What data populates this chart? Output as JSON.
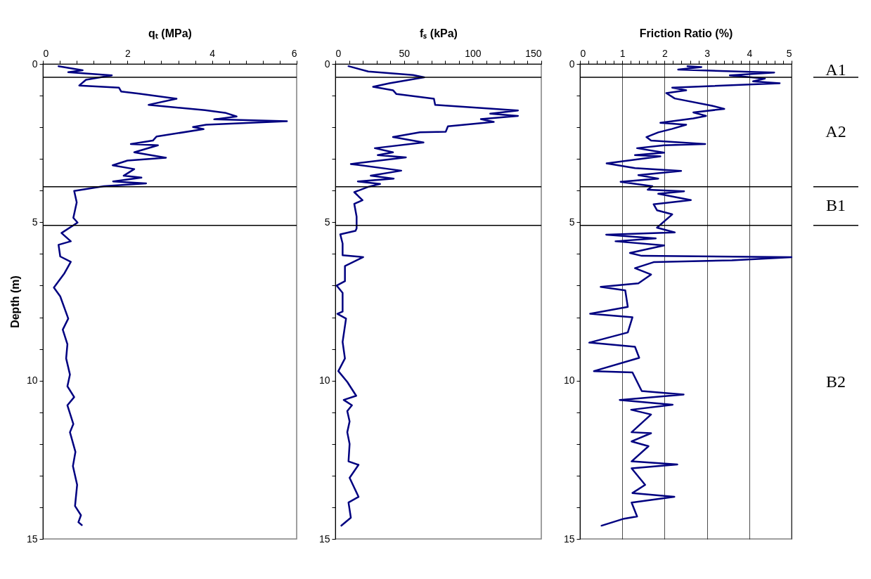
{
  "chart_data": [
    {
      "type": "line",
      "xlabel": "qₜ (MPa)",
      "ylabel": "Depth (m)",
      "xlim": [
        0,
        6
      ],
      "xticks": [
        0,
        {
          "value": 0.4,
          "label": null
        },
        {
          "value": 0.8,
          "label": null
        },
        {
          "value": 1.2,
          "label": null
        },
        {
          "value": 1.6,
          "label": null
        },
        2,
        {
          "value": 2.4,
          "label": null
        },
        {
          "value": 2.8,
          "label": null
        },
        {
          "value": 3.2,
          "label": null
        },
        {
          "value": 3.6,
          "label": null
        },
        4,
        {
          "value": 4.4,
          "label": null
        },
        {
          "value": 4.8,
          "label": null
        },
        {
          "value": 5.2,
          "label": null
        },
        {
          "value": 5.6,
          "label": null
        },
        6
      ],
      "ylim": [
        15,
        0
      ],
      "yticks": [
        0,
        {
          "value": 1,
          "label": null
        },
        {
          "value": 2,
          "label": null
        },
        {
          "value": 3,
          "label": null
        },
        {
          "value": 4,
          "label": null
        },
        5,
        {
          "value": 6,
          "label": null
        },
        {
          "value": 7,
          "label": null
        },
        {
          "value": 8,
          "label": null
        },
        {
          "value": 9,
          "label": null
        },
        10,
        {
          "value": 11,
          "label": null
        },
        {
          "value": 12,
          "label": null
        },
        {
          "value": 13,
          "label": null
        },
        {
          "value": 14,
          "label": null
        },
        15
      ],
      "series": [
        {
          "color": "#000080",
          "x": [
            0.37,
            0.94,
            0.6,
            1.63,
            1.02,
            0.86,
            1.8,
            1.85,
            2.27,
            3.16,
            2.5,
            3.83,
            4.33,
            4.58,
            4.05,
            5.77,
            3.86,
            3.55,
            3.8,
            2.69,
            2.6,
            2.08,
            2.72,
            2.16,
            2.91,
            2.0,
            1.65,
            2.16,
            1.91,
            2.33,
            1.66,
            2.44,
            1.44,
            0.74,
            0.8,
            0.72,
            0.82,
            0.44,
            0.66,
            0.37,
            0.41,
            0.66,
            0.5,
            0.26,
            0.41,
            0.6,
            0.47,
            0.58,
            0.55,
            0.64,
            0.58,
            0.74,
            0.58,
            0.72,
            0.64,
            0.77,
            0.71,
            0.81,
            0.76,
            0.9,
            0.84,
            0.92
          ],
          "values": [
            0.07,
            0.2,
            0.26,
            0.36,
            0.5,
            0.68,
            0.75,
            0.87,
            0.94,
            1.1,
            1.29,
            1.46,
            1.55,
            1.66,
            1.75,
            1.81,
            1.92,
            1.99,
            2.06,
            2.29,
            2.42,
            2.53,
            2.57,
            2.79,
            2.96,
            3.05,
            3.2,
            3.32,
            3.53,
            3.59,
            3.71,
            3.77,
            3.86,
            4.01,
            4.37,
            4.86,
            5.01,
            5.34,
            5.6,
            5.71,
            6.08,
            6.25,
            6.63,
            7.06,
            7.34,
            8.04,
            8.39,
            8.85,
            9.3,
            9.81,
            10.18,
            10.52,
            10.78,
            11.37,
            11.63,
            12.25,
            12.7,
            13.29,
            13.96,
            14.25,
            14.47,
            14.56
          ]
        }
      ],
      "ref_lines": [
        {
          "axis": "y",
          "value": 0.42
        },
        {
          "axis": "y",
          "value": 3.88
        },
        {
          "axis": "y",
          "value": 5.1
        }
      ]
    },
    {
      "type": "line",
      "xlabel": "fₛ (kPa)",
      "xlim": [
        0,
        150
      ],
      "xticks": [
        0,
        {
          "value": 10,
          "label": null
        },
        {
          "value": 20,
          "label": null
        },
        {
          "value": 30,
          "label": null
        },
        {
          "value": 40,
          "label": null
        },
        50,
        {
          "value": 60,
          "label": null
        },
        {
          "value": 70,
          "label": null
        },
        {
          "value": 80,
          "label": null
        },
        {
          "value": 90,
          "label": null
        },
        100,
        {
          "value": 110,
          "label": null
        },
        {
          "value": 120,
          "label": null
        },
        {
          "value": 130,
          "label": null
        },
        {
          "value": 140,
          "label": null
        },
        150
      ],
      "ylim": [
        15,
        0
      ],
      "yticks": [
        0,
        {
          "value": 1,
          "label": null
        },
        {
          "value": 2,
          "label": null
        },
        {
          "value": 3,
          "label": null
        },
        {
          "value": 4,
          "label": null
        },
        5,
        {
          "value": 6,
          "label": null
        },
        {
          "value": 7,
          "label": null
        },
        {
          "value": 8,
          "label": null
        },
        {
          "value": 9,
          "label": null
        },
        10,
        {
          "value": 11,
          "label": null
        },
        {
          "value": 12,
          "label": null
        },
        {
          "value": 13,
          "label": null
        },
        {
          "value": 14,
          "label": null
        },
        15
      ],
      "series": [
        {
          "color": "#000080",
          "x": [
            9.6,
            24,
            56.5,
            64.7,
            39.4,
            27.5,
            42,
            44.5,
            71.8,
            72.7,
            133,
            112.8,
            133,
            106,
            115.4,
            82,
            80.4,
            61.6,
            42,
            64.2,
            28.8,
            42,
            30.9,
            51.4,
            11.3,
            48,
            25.8,
            42.5,
            16.4,
            32.6,
            24,
            13.8,
            19.8,
            13.8,
            15.5,
            15.5,
            14.7,
            3.6,
            5.3,
            5.3,
            20.3,
            7,
            7,
            1,
            5.3,
            5.3,
            1.5,
            7.8,
            5.3,
            7,
            2.2,
            8.7,
            15.2,
            6.1,
            12.1,
            8.7,
            10.4,
            8.7,
            10.4,
            9.6,
            16.9,
            10.4,
            16.9,
            9.6,
            11.3,
            4.4
          ],
          "values": [
            0.07,
            0.24,
            0.35,
            0.42,
            0.61,
            0.72,
            0.83,
            0.95,
            1.1,
            1.29,
            1.47,
            1.57,
            1.64,
            1.74,
            1.83,
            1.97,
            2.14,
            2.16,
            2.31,
            2.48,
            2.66,
            2.79,
            2.88,
            2.95,
            3.16,
            3.37,
            3.53,
            3.62,
            3.71,
            3.79,
            3.88,
            4.05,
            4.3,
            4.42,
            4.82,
            5.19,
            5.27,
            5.38,
            5.67,
            6.04,
            6.1,
            6.38,
            6.86,
            7.0,
            7.23,
            7.82,
            7.89,
            8.04,
            8.78,
            9.3,
            9.7,
            10.04,
            10.48,
            10.61,
            10.78,
            10.96,
            11.29,
            11.63,
            12.0,
            12.55,
            12.66,
            13.07,
            13.67,
            13.85,
            14.33,
            14.58
          ]
        }
      ],
      "ref_lines": [
        {
          "axis": "y",
          "value": 0.42
        },
        {
          "axis": "y",
          "value": 3.88
        },
        {
          "axis": "y",
          "value": 5.1
        }
      ]
    },
    {
      "type": "line",
      "xlabel": "Friction Ratio (%)",
      "grid": "x",
      "xlim": [
        0,
        5
      ],
      "xticks": [
        0,
        {
          "value": 0.2,
          "label": null
        },
        {
          "value": 0.4,
          "label": null
        },
        {
          "value": 0.6,
          "label": null
        },
        {
          "value": 0.8,
          "label": null
        },
        1,
        {
          "value": 1.2,
          "label": null
        },
        {
          "value": 1.4,
          "label": null
        },
        {
          "value": 1.6,
          "label": null
        },
        {
          "value": 1.8,
          "label": null
        },
        2,
        {
          "value": 2.2,
          "label": null
        },
        {
          "value": 2.4,
          "label": null
        },
        {
          "value": 2.6,
          "label": null
        },
        {
          "value": 2.8,
          "label": null
        },
        3,
        {
          "value": 3.2,
          "label": null
        },
        {
          "value": 3.4,
          "label": null
        },
        {
          "value": 3.6,
          "label": null
        },
        {
          "value": 3.8,
          "label": null
        },
        4,
        {
          "value": 4.2,
          "label": null
        },
        {
          "value": 4.4,
          "label": null
        },
        {
          "value": 4.6,
          "label": null
        },
        {
          "value": 4.8,
          "label": null
        },
        5
      ],
      "ylim": [
        15,
        0
      ],
      "yticks": [
        0,
        {
          "value": 1,
          "label": null
        },
        {
          "value": 2,
          "label": null
        },
        {
          "value": 3,
          "label": null
        },
        {
          "value": 4,
          "label": null
        },
        5,
        {
          "value": 6,
          "label": null
        },
        {
          "value": 7,
          "label": null
        },
        {
          "value": 8,
          "label": null
        },
        {
          "value": 9,
          "label": null
        },
        10,
        {
          "value": 11,
          "label": null
        },
        {
          "value": 12,
          "label": null
        },
        {
          "value": 13,
          "label": null
        },
        {
          "value": 14,
          "label": null
        },
        15
      ],
      "series": [
        {
          "color": "#000080",
          "x": [
            2.54,
            2.87,
            2.32,
            4.59,
            3.54,
            4.37,
            4.09,
            4.72,
            2.18,
            2.51,
            2.04,
            2.24,
            3.12,
            3.41,
            2.68,
            2.98,
            2.68,
            1.9,
            2.51,
            2.18,
            1.85,
            1.57,
            1.68,
            2.96,
            1.99,
            1.35,
            1.99,
            1.3,
            1.9,
            0.63,
            1.3,
            2.39,
            1.38,
            1.85,
            0.96,
            1.71,
            1.6,
            2.46,
            1.85,
            2.62,
            1.74,
            1.82,
            2.18,
            1.82,
            2.24,
            0.62,
            1.79,
            0.84,
            1.99,
            1.18,
            1.46,
            5.0,
            3.59,
            1.74,
            1.3,
            1.68,
            1.38,
            0.49,
            1.07,
            1.13,
            0.24,
            1.24,
            1.13,
            0.22,
            1.3,
            1.4,
            0.33,
            1.24,
            1.46,
            2.45,
            0.94,
            2.19,
            1.21,
            1.68,
            1.22,
            1.68,
            1.22,
            1.62,
            1.22,
            2.3,
            1.22,
            1.54,
            1.24,
            2.23,
            1.22,
            1.35,
            1.04,
            0.51
          ],
          "values": [
            0.07,
            0.1,
            0.18,
            0.27,
            0.36,
            0.46,
            0.55,
            0.61,
            0.75,
            0.83,
            0.92,
            1.09,
            1.32,
            1.42,
            1.53,
            1.64,
            1.72,
            1.86,
            1.92,
            2.05,
            2.16,
            2.31,
            2.42,
            2.53,
            2.57,
            2.66,
            2.8,
            2.88,
            2.92,
            3.14,
            3.29,
            3.38,
            3.51,
            3.62,
            3.72,
            3.86,
            3.97,
            4.02,
            4.1,
            4.3,
            4.43,
            4.62,
            4.75,
            5.17,
            5.32,
            5.39,
            5.51,
            5.6,
            5.73,
            5.97,
            6.06,
            6.1,
            6.2,
            6.26,
            6.45,
            6.65,
            6.93,
            7.04,
            7.15,
            7.67,
            7.89,
            8.0,
            8.48,
            8.8,
            8.93,
            9.28,
            9.7,
            9.74,
            10.33,
            10.44,
            10.61,
            10.76,
            10.92,
            11.07,
            11.63,
            11.66,
            11.92,
            12.07,
            12.55,
            12.65,
            12.77,
            13.29,
            13.55,
            13.67,
            13.85,
            14.29,
            14.36,
            14.58
          ]
        }
      ],
      "ref_lines": [
        {
          "axis": "y",
          "value": 0.42
        },
        {
          "axis": "y",
          "value": 3.88
        },
        {
          "axis": "y",
          "value": 5.1
        }
      ],
      "annotations": [
        "A1",
        "A2",
        "B1",
        "B2"
      ]
    }
  ]
}
